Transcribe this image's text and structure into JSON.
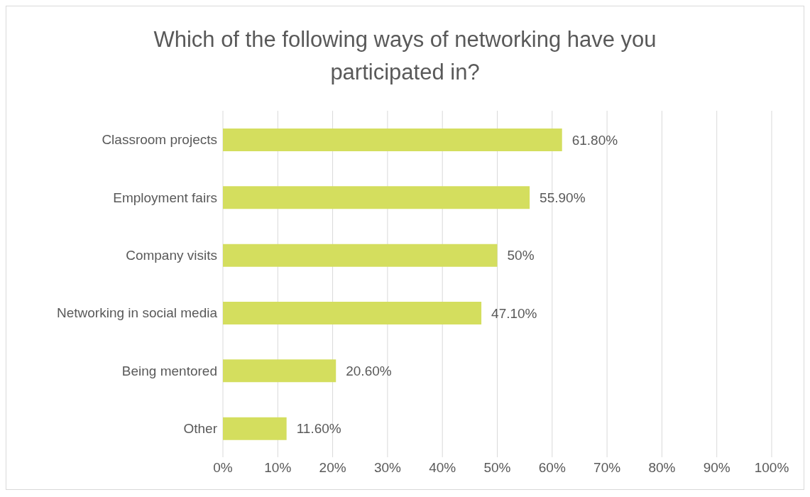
{
  "chart_data": {
    "type": "bar",
    "orientation": "horizontal",
    "title": "Which of the following ways of networking have you participated in?",
    "categories": [
      "Classroom projects",
      "Employment fairs",
      "Company visits",
      "Networking in social media",
      "Being mentored",
      "Other"
    ],
    "values": [
      61.8,
      55.9,
      50,
      47.1,
      20.6,
      11.6
    ],
    "value_labels": [
      "61.80%",
      "55.90%",
      "50%",
      "47.10%",
      "20.60%",
      "11.60%"
    ],
    "color": "#d4de5e",
    "xlim": [
      0,
      100
    ],
    "xticks": [
      {
        "value": 0,
        "label": "0%"
      },
      {
        "value": 10,
        "label": "10%"
      },
      {
        "value": 20,
        "label": "20%"
      },
      {
        "value": 30,
        "label": "30%"
      },
      {
        "value": 40,
        "label": "40%"
      },
      {
        "value": 50,
        "label": "50%"
      },
      {
        "value": 60,
        "label": "60%"
      },
      {
        "value": 70,
        "label": "70%"
      },
      {
        "value": 80,
        "label": "80%"
      },
      {
        "value": 90,
        "label": "90%"
      },
      {
        "value": 100,
        "label": "100%"
      }
    ],
    "grid": "x",
    "legend": false
  }
}
